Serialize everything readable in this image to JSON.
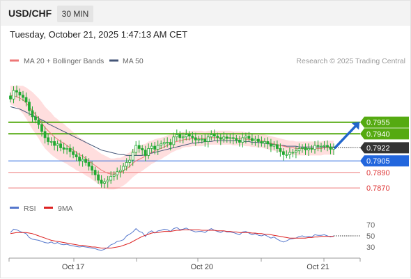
{
  "header": {
    "pair": "USD/CHF",
    "timeframe": "30 MIN"
  },
  "datetime": "Tuesday, October 21, 2025 1:47:13 AM CET",
  "colors": {
    "support": "#2266dd",
    "resistance": "#55aa11",
    "target_line": "#ee7777",
    "arrow": "#2266cc",
    "candle": "#22aa33",
    "bollinger": "#ffd8d8",
    "ma20": "#ee7777",
    "ma50": "#445577",
    "rsi": "#5577cc",
    "rsi_ma": "#dd2222"
  },
  "legend": {
    "ma20": "MA 20 + Bollinger Bands",
    "ma50": "MA 50",
    "credit": "Research © 2025 Trading Central"
  },
  "rsi_legend": {
    "rsi": "RSI",
    "ma": "9MA"
  },
  "chart_data": [
    {
      "type": "candlestick",
      "price_range": [
        0.7862,
        0.8015
      ],
      "x_ticks": [
        {
          "label": "Oct 17",
          "index": 20
        },
        {
          "label": "Oct 20",
          "index": 61
        },
        {
          "label": "Oct 21",
          "index": 98
        }
      ],
      "last_price": 0.7922,
      "levels": [
        {
          "value": 0.7955,
          "label": "0.7955",
          "kind": "resistance"
        },
        {
          "value": 0.794,
          "label": "0.7940",
          "kind": "resistance"
        },
        {
          "value": 0.7905,
          "label": "0.7905",
          "kind": "support"
        },
        {
          "value": 0.789,
          "label": "0.7890",
          "kind": "target"
        },
        {
          "value": 0.787,
          "label": "0.7870",
          "kind": "target"
        }
      ],
      "close": [
        0.7985,
        0.7996,
        0.7994,
        0.799,
        0.7987,
        0.7981,
        0.797,
        0.7962,
        0.7958,
        0.7952,
        0.7943,
        0.7935,
        0.793,
        0.793,
        0.7925,
        0.7927,
        0.7922,
        0.792,
        0.7921,
        0.7917,
        0.7913,
        0.791,
        0.7905,
        0.7907,
        0.7903,
        0.7898,
        0.7893,
        0.7887,
        0.788,
        0.7876,
        0.7878,
        0.788,
        0.7885,
        0.7887,
        0.7891,
        0.7893,
        0.7898,
        0.7903,
        0.7906,
        0.7916,
        0.7925,
        0.7921,
        0.7919,
        0.7912,
        0.7921,
        0.7924,
        0.792,
        0.7925,
        0.7927,
        0.7929,
        0.7929,
        0.7926,
        0.7936,
        0.7939,
        0.7935,
        0.7936,
        0.7939,
        0.7937,
        0.7935,
        0.7932,
        0.7933,
        0.7933,
        0.793,
        0.7936,
        0.7939,
        0.7937,
        0.7935,
        0.7933,
        0.7936,
        0.7934,
        0.7935,
        0.7934,
        0.7932,
        0.7929,
        0.7935,
        0.7937,
        0.7934,
        0.7931,
        0.7933,
        0.793,
        0.7928,
        0.793,
        0.7927,
        0.7924,
        0.7926,
        0.7921,
        0.7917,
        0.7913,
        0.7913,
        0.7916,
        0.7916,
        0.7918,
        0.7921,
        0.7922,
        0.7919,
        0.7921,
        0.792,
        0.7925,
        0.7924,
        0.7924,
        0.7925,
        0.7923,
        0.792,
        0.7922
      ],
      "ma20": [
        0.799,
        0.7989,
        0.7988,
        0.7986,
        0.7984,
        0.798,
        0.7975,
        0.797,
        0.7965,
        0.796,
        0.7954,
        0.7948,
        0.7944,
        0.794,
        0.7936,
        0.7933,
        0.793,
        0.7928,
        0.7925,
        0.7922,
        0.7919,
        0.7916,
        0.7913,
        0.7911,
        0.7908,
        0.7905,
        0.7902,
        0.7899,
        0.7896,
        0.7893,
        0.7891,
        0.7889,
        0.7888,
        0.7888,
        0.7889,
        0.789,
        0.7892,
        0.7895,
        0.7898,
        0.7902,
        0.7905,
        0.7907,
        0.7909,
        0.7911,
        0.7914,
        0.7916,
        0.7918,
        0.792,
        0.7921,
        0.7923,
        0.7925,
        0.7927,
        0.7929,
        0.793,
        0.7931,
        0.7932,
        0.7933,
        0.7933,
        0.7934,
        0.7934,
        0.7934,
        0.7934,
        0.7934,
        0.7935,
        0.7935,
        0.7935,
        0.7935,
        0.7935,
        0.7935,
        0.7935,
        0.7935,
        0.7934,
        0.7934,
        0.7934,
        0.7934,
        0.7933,
        0.7933,
        0.7932,
        0.7932,
        0.7931,
        0.7931,
        0.793,
        0.7929,
        0.7928,
        0.7927,
        0.7926,
        0.7925,
        0.7924,
        0.7923,
        0.7922,
        0.7922,
        0.7921,
        0.7921,
        0.7921,
        0.7921,
        0.7921,
        0.7921,
        0.7921,
        0.7921,
        0.7921,
        0.7922,
        0.7922,
        0.7922,
        0.7922
      ],
      "ma50": [
        0.7975,
        0.7974,
        0.7973,
        0.7972,
        0.797,
        0.7968,
        0.7966,
        0.7964,
        0.7962,
        0.796,
        0.7958,
        0.7956,
        0.7953,
        0.7951,
        0.7949,
        0.7947,
        0.7945,
        0.7943,
        0.7941,
        0.7939,
        0.7937,
        0.7935,
        0.7933,
        0.7931,
        0.7929,
        0.7927,
        0.7925,
        0.7923,
        0.7921,
        0.7919,
        0.7918,
        0.7917,
        0.7916,
        0.7915,
        0.7914,
        0.7913,
        0.7913,
        0.7912,
        0.7912,
        0.7912,
        0.7912,
        0.7912,
        0.7912,
        0.7913,
        0.7914,
        0.7915,
        0.7916,
        0.7917,
        0.7918,
        0.7919,
        0.792,
        0.7921,
        0.7922,
        0.7923,
        0.7924,
        0.7925,
        0.7926,
        0.7927,
        0.7928,
        0.7928,
        0.7929,
        0.7929,
        0.793,
        0.793,
        0.793,
        0.7931,
        0.7931,
        0.7931,
        0.7931,
        0.7931,
        0.7931,
        0.7931,
        0.7931,
        0.7931,
        0.793,
        0.793,
        0.793,
        0.7929,
        0.7929,
        0.7929,
        0.7928,
        0.7928,
        0.7927,
        0.7927,
        0.7926,
        0.7926,
        0.7925,
        0.7925,
        0.7924,
        0.7924,
        0.7924,
        0.7924,
        0.7923,
        0.7923,
        0.7923,
        0.7923,
        0.7923,
        0.7923,
        0.7923,
        0.7923,
        0.7923,
        0.7923,
        0.7923,
        0.7923
      ],
      "bb_width": [
        0.0012,
        0.0013,
        0.0014,
        0.0016,
        0.0018,
        0.002,
        0.0022,
        0.0024,
        0.0025,
        0.0026,
        0.0027,
        0.0027,
        0.0027,
        0.0027,
        0.0026,
        0.0026,
        0.0025,
        0.0025,
        0.0024,
        0.0024,
        0.0023,
        0.0023,
        0.0022,
        0.0022,
        0.0022,
        0.0021,
        0.0021,
        0.0021,
        0.0021,
        0.0021,
        0.0021,
        0.0021,
        0.002,
        0.002,
        0.002,
        0.0019,
        0.0019,
        0.0019,
        0.0018,
        0.0018,
        0.0018,
        0.0017,
        0.0017,
        0.0016,
        0.0016,
        0.0015,
        0.0015,
        0.0014,
        0.0014,
        0.0013,
        0.0013,
        0.0012,
        0.0012,
        0.0011,
        0.0011,
        0.001,
        0.001,
        0.001,
        0.001,
        0.001,
        0.001,
        0.001,
        0.0009,
        0.0009,
        0.0009,
        0.0009,
        0.0009,
        0.0009,
        0.0009,
        0.0009,
        0.0009,
        0.0009,
        0.0009,
        0.0009,
        0.0009,
        0.0009,
        0.0009,
        0.0009,
        0.0009,
        0.0009,
        0.0009,
        0.0009,
        0.0009,
        0.0009,
        0.0009,
        0.0009,
        0.0009,
        0.0009,
        0.0009,
        0.0009,
        0.0009,
        0.0009,
        0.0009,
        0.0009,
        0.0009,
        0.0009,
        0.0009,
        0.0009,
        0.0009,
        0.0009,
        0.0009,
        0.0009,
        0.0009,
        0.0009
      ],
      "forecast_target": 0.7955
    },
    {
      "type": "line",
      "name": "RSI",
      "y_ticks": [
        30,
        50,
        70
      ],
      "ylim": [
        20,
        80
      ],
      "rsi": [
        56,
        62,
        61,
        58,
        56,
        54,
        47,
        44,
        43,
        42,
        40,
        38,
        37,
        39,
        36,
        38,
        35,
        34,
        35,
        33,
        32,
        31,
        30,
        31,
        30,
        29,
        28,
        27,
        25,
        24,
        26,
        29,
        34,
        36,
        40,
        41,
        43,
        50,
        53,
        57,
        63,
        58,
        56,
        49,
        56,
        59,
        55,
        59,
        60,
        62,
        61,
        58,
        63,
        65,
        61,
        62,
        64,
        61,
        59,
        57,
        58,
        58,
        56,
        60,
        63,
        60,
        58,
        56,
        59,
        57,
        57,
        56,
        54,
        52,
        57,
        58,
        55,
        52,
        54,
        51,
        50,
        52,
        49,
        46,
        48,
        44,
        41,
        39,
        41,
        44,
        45,
        46,
        49,
        50,
        48,
        49,
        48,
        52,
        51,
        51,
        52,
        50,
        48,
        50
      ],
      "rsi_ma": [
        54,
        55,
        56,
        56,
        56,
        56,
        55,
        54,
        52,
        50,
        48,
        46,
        44,
        42,
        41,
        40,
        39,
        38,
        37,
        36,
        35,
        34,
        33,
        33,
        32,
        31,
        30,
        30,
        29,
        28,
        28,
        28,
        28,
        29,
        30,
        31,
        33,
        35,
        37,
        40,
        43,
        46,
        49,
        51,
        53,
        55,
        56,
        56,
        57,
        58,
        58,
        58,
        59,
        60,
        60,
        61,
        61,
        61,
        61,
        61,
        61,
        60,
        60,
        60,
        60,
        60,
        59,
        59,
        59,
        58,
        58,
        57,
        57,
        56,
        56,
        56,
        56,
        55,
        55,
        54,
        54,
        53,
        53,
        52,
        51,
        50,
        49,
        48,
        47,
        46,
        46,
        46,
        46,
        46,
        46,
        47,
        47,
        48,
        48,
        49,
        49,
        49,
        49,
        49
      ]
    }
  ]
}
